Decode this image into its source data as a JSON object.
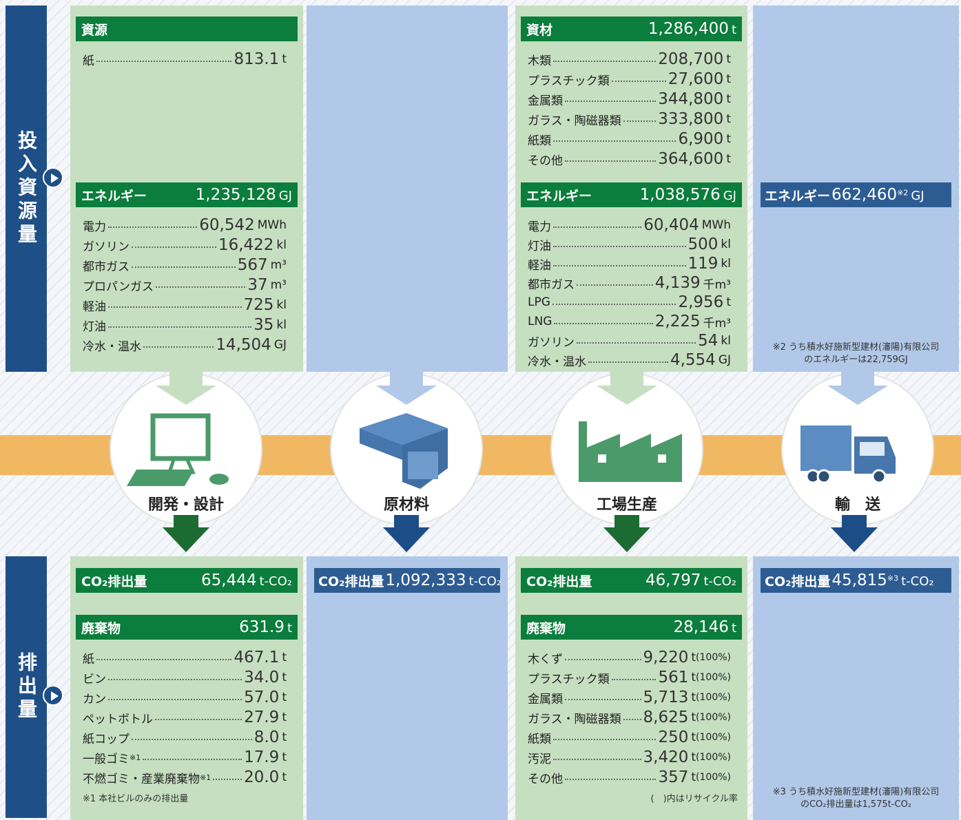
{
  "sidebar": {
    "input": "投入資源量",
    "output": "排出量"
  },
  "stages": [
    {
      "name": "開発・設計",
      "input": [
        {
          "title": "資源",
          "items": [
            {
              "label": "紙",
              "value": "813.1",
              "unit": "t"
            }
          ]
        },
        {
          "title": "エネルギー",
          "total": "1,235,128",
          "unit": "GJ",
          "items": [
            {
              "label": "電力",
              "value": "60,542",
              "unit": "MWh"
            },
            {
              "label": "ガソリン",
              "value": "16,422",
              "unit": "kl"
            },
            {
              "label": "都市ガス",
              "value": "567",
              "unit": "m³"
            },
            {
              "label": "プロパンガス",
              "value": "37",
              "unit": "m³"
            },
            {
              "label": "軽油",
              "value": "725",
              "unit": "kl"
            },
            {
              "label": "灯油",
              "value": "35",
              "unit": "kl"
            },
            {
              "label": "冷水・温水",
              "value": "14,504",
              "unit": "GJ"
            }
          ]
        }
      ],
      "output": [
        {
          "title": "CO₂排出量",
          "total": "65,444",
          "unit": "t-CO₂"
        },
        {
          "title": "廃棄物",
          "total": "631.9",
          "unit": "t",
          "items": [
            {
              "label": "紙",
              "value": "467.1",
              "unit": "t"
            },
            {
              "label": "ビン",
              "value": "34.0",
              "unit": "t"
            },
            {
              "label": "カン",
              "value": "57.0",
              "unit": "t"
            },
            {
              "label": "ペットボトル",
              "value": "27.9",
              "unit": "t"
            },
            {
              "label": "紙コップ",
              "value": "8.0",
              "unit": "t"
            },
            {
              "label": "一般ゴミ",
              "note": "※1",
              "value": "17.9",
              "unit": "t"
            },
            {
              "label": "不燃ゴミ・産業廃棄物",
              "note": "※1",
              "value": "20.0",
              "unit": "t"
            }
          ]
        }
      ],
      "output_note": [
        "※1 本社ビルのみの排出量"
      ]
    },
    {
      "name": "原材料",
      "input": [],
      "output": [
        {
          "title": "CO₂排出量",
          "total": "1,092,333",
          "unit": "t-CO₂"
        }
      ]
    },
    {
      "name": "工場生産",
      "input": [
        {
          "title": "資材",
          "total": "1,286,400",
          "unit": "t",
          "items": [
            {
              "label": "木類",
              "value": "208,700",
              "unit": "t"
            },
            {
              "label": "プラスチック類",
              "value": "27,600",
              "unit": "t"
            },
            {
              "label": "金属類",
              "value": "344,800",
              "unit": "t"
            },
            {
              "label": "ガラス・陶磁器類",
              "value": "333,800",
              "unit": "t"
            },
            {
              "label": "紙類",
              "value": "6,900",
              "unit": "t"
            },
            {
              "label": "その他",
              "value": "364,600",
              "unit": "t"
            }
          ]
        },
        {
          "title": "エネルギー",
          "total": "1,038,576",
          "unit": "GJ",
          "items": [
            {
              "label": "電力",
              "value": "60,404",
              "unit": "MWh"
            },
            {
              "label": "灯油",
              "value": "500",
              "unit": "kl"
            },
            {
              "label": "軽油",
              "value": "119",
              "unit": "kl"
            },
            {
              "label": "都市ガス",
              "value": "4,139",
              "unit": "千m³"
            },
            {
              "label": "LPG",
              "value": "2,956",
              "unit": "t"
            },
            {
              "label": "LNG",
              "value": "2,225",
              "unit": "千m³"
            },
            {
              "label": "ガソリン",
              "value": "54",
              "unit": "kl"
            },
            {
              "label": "冷水・温水",
              "value": "4,554",
              "unit": "GJ"
            }
          ]
        }
      ],
      "output": [
        {
          "title": "CO₂排出量",
          "total": "46,797",
          "unit": "t-CO₂"
        },
        {
          "title": "廃棄物",
          "total": "28,146",
          "unit": "t",
          "items": [
            {
              "label": "木くず",
              "value": "9,220",
              "unit": "t",
              "rate": "(100%)"
            },
            {
              "label": "プラスチック類",
              "value": "561",
              "unit": "t",
              "rate": "(100%)"
            },
            {
              "label": "金属類",
              "value": "5,713",
              "unit": "t",
              "rate": "(100%)"
            },
            {
              "label": "ガラス・陶磁器類",
              "value": "8,625",
              "unit": "t",
              "rate": "(100%)"
            },
            {
              "label": "紙類",
              "value": "250",
              "unit": "t",
              "rate": "(100%)"
            },
            {
              "label": "汚泥",
              "value": "3,420",
              "unit": "t",
              "rate": "(100%)"
            },
            {
              "label": "その他",
              "value": "357",
              "unit": "t",
              "rate": "(100%)"
            }
          ]
        }
      ],
      "output_note": [
        "(　)内はリサイクル率"
      ]
    },
    {
      "name": "輸　送",
      "input": [
        {
          "title": "エネルギー",
          "total": "662,460",
          "note": "※2",
          "unit": "GJ"
        }
      ],
      "input_note": [
        "※2 うち積水好施新型建材(瀋陽)有限公司",
        "のエネルギーは22,759GJ"
      ],
      "output": [
        {
          "title": "CO₂排出量",
          "total": "45,815",
          "note": "※3",
          "unit": "t-CO₂"
        }
      ],
      "output_note": [
        "※3 うち積水好施新型建材(瀋陽)有限公司",
        "のCO₂排出量は1,575t-CO₂"
      ]
    }
  ]
}
